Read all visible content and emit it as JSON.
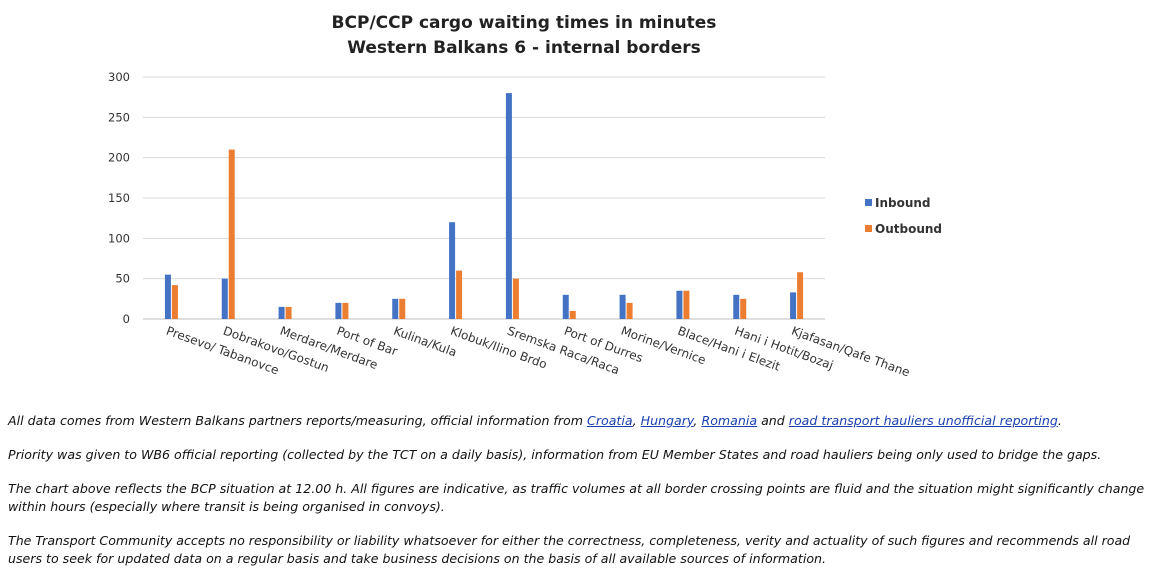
{
  "chart_data": {
    "type": "bar",
    "title": [
      "BCP/CCP cargo waiting times in minutes",
      "Western Balkans 6 - internal borders"
    ],
    "categories": [
      "Presevo/ Tabanovce",
      "Dobrakovo/Gostun",
      "Merdare/Merdare",
      "Port of Bar",
      "Kulina/Kula",
      "Klobuk/Ilino Brdo",
      "Sremska Raca/Raca",
      "Port of Durres",
      "Morine/Vernice",
      "Blace/Hani i Elezit",
      "Hani i Hotit/Bozaj",
      "Kjafasan/Qafe Thane"
    ],
    "series": [
      {
        "name": "Inbound",
        "color": "#4472c4",
        "values": [
          55,
          50,
          15,
          20,
          25,
          120,
          280,
          30,
          30,
          35,
          30,
          33
        ]
      },
      {
        "name": "Outbound",
        "color": "#ed7d31",
        "values": [
          42,
          210,
          15,
          20,
          25,
          60,
          50,
          10,
          20,
          35,
          25,
          58
        ]
      }
    ],
    "ylim": [
      0,
      300
    ],
    "yticks": [
      "0",
      "50",
      "100",
      "150",
      "200",
      "250",
      "300"
    ],
    "grid": true,
    "legend_position": "right"
  },
  "notes": {
    "p1": {
      "before": "All data comes from Western Balkans partners reports/measuring, official information from ",
      "link_croatia": "Croatia",
      "sep1": ", ",
      "link_hungary": "Hungary",
      "sep2": ", ",
      "link_romania": "Romania",
      "and": " and ",
      "link_hauliers": "road transport hauliers unofficial reporting",
      "end": "."
    },
    "p2": "Priority was given to WB6 official reporting (collected by the TCT on a daily basis), information from EU Member States and road hauliers being only used to bridge the gaps.",
    "p3": "The chart above reflects the BCP situation at 12.00 h. All figures are indicative, as traffic volumes at all border crossing points are fluid and the situation might significantly change within hours (especially where transit is being organised in convoys).",
    "p4": "The Transport Community accepts no responsibility or liability whatsoever for either the correctness, completeness, verity and actuality of such figures and recommends all road users to seek for updated data on a regular basis and take business decisions on the basis of all available sources of information."
  }
}
